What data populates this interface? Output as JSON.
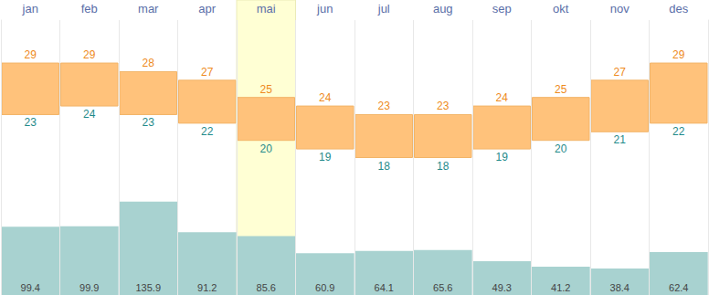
{
  "chart_data": {
    "type": "bar",
    "categories": [
      "jan",
      "feb",
      "mar",
      "apr",
      "mai",
      "jun",
      "jul",
      "aug",
      "sep",
      "okt",
      "nov",
      "des"
    ],
    "series": [
      {
        "type": "range",
        "color": "#ffc27b",
        "low": [
          23,
          24,
          23,
          22,
          20,
          19,
          18,
          18,
          19,
          20,
          21,
          22
        ],
        "high": [
          29,
          29,
          28,
          27,
          25,
          24,
          23,
          23,
          24,
          25,
          27,
          29
        ]
      },
      {
        "type": "bar",
        "axis": "y2",
        "color": "#a8d2d0",
        "values": [
          99.4,
          99.9,
          135.9,
          91.2,
          85.6,
          60.9,
          64.1,
          65.6,
          49.3,
          41.2,
          38.4,
          62.4
        ]
      }
    ],
    "ylim": [
      2,
      34
    ],
    "y2lim": [
      0,
      400
    ],
    "grid": true,
    "data_labels": true,
    "tick_labels": false
  }
}
